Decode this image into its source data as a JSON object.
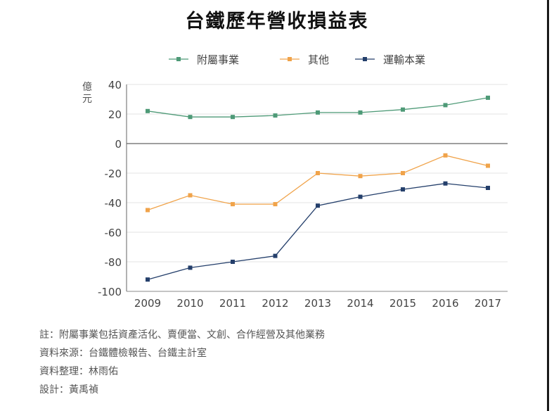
{
  "chart_data": {
    "type": "line",
    "title": "台鐵歷年營收損益表",
    "ylabel": "億元",
    "xlabel": "",
    "categories": [
      "2009",
      "2010",
      "2011",
      "2012",
      "2013",
      "2014",
      "2015",
      "2016",
      "2017"
    ],
    "ylim": [
      -100,
      40
    ],
    "yticks": [
      40,
      20,
      0,
      -20,
      -40,
      -60,
      -80,
      -100
    ],
    "grid": true,
    "legend_position": "top",
    "series": [
      {
        "name": "附屬事業",
        "color": "#4e9a77",
        "values": [
          22,
          18,
          18,
          19,
          21,
          21,
          23,
          26,
          31
        ]
      },
      {
        "name": "其他",
        "color": "#f0a34a",
        "values": [
          -45,
          -35,
          -41,
          -41,
          -20,
          -22,
          -20,
          -8,
          -15
        ]
      },
      {
        "name": "運輸本業",
        "color": "#243f6b",
        "values": [
          -92,
          -84,
          -80,
          -76,
          -42,
          -36,
          -31,
          -27,
          -30
        ]
      }
    ]
  },
  "notes": [
    "註：附屬事業包括資產活化、賣便當、文創、合作經營及其他業務",
    "資料來源：台鐵體檢報告、台鐵主計室",
    "資料整理：林雨佑",
    "設計：黃禹禎"
  ]
}
